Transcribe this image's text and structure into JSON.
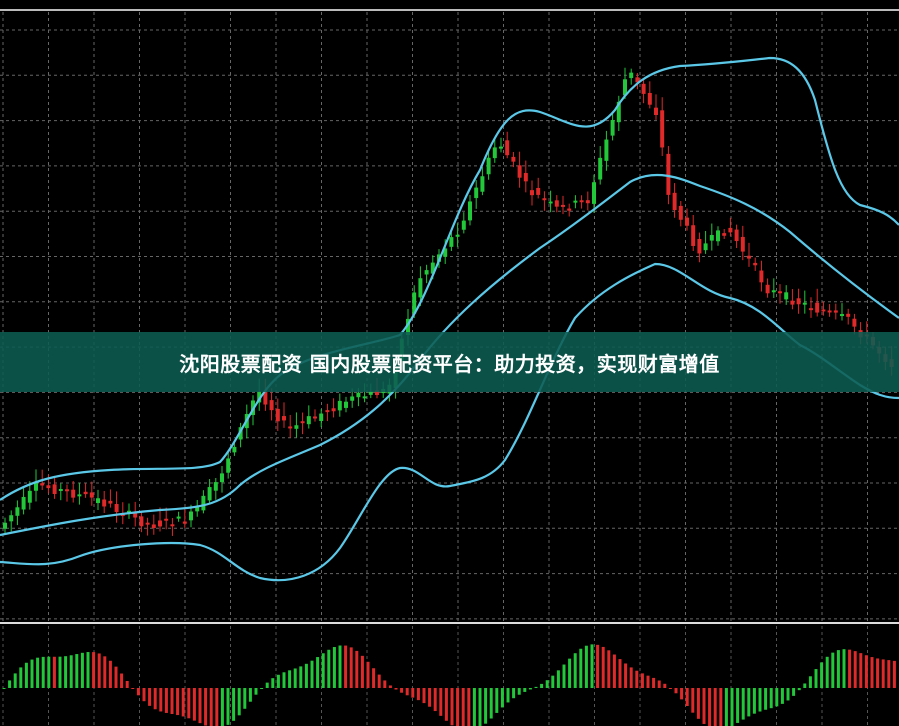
{
  "banner": {
    "title": "沈阳股票配资 国内股票配资平台：助力投资，实现财富增值"
  }
}
